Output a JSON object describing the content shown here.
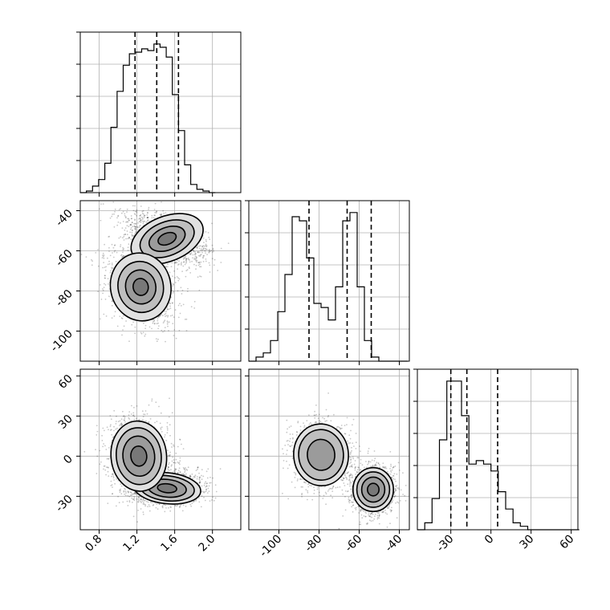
{
  "chart_data": {
    "type": "corner",
    "parameters": [
      {
        "range": [
          0.6,
          2.3
        ],
        "ticks": [
          "0.8",
          "1.2",
          "1.6",
          "2.0"
        ],
        "tick_values": [
          0.8,
          1.2,
          1.6,
          2.0
        ],
        "quantiles": [
          1.18,
          1.41,
          1.64
        ]
      },
      {
        "range": [
          -115,
          -35
        ],
        "ticks": [
          "-100",
          "-80",
          "-60",
          "-40"
        ],
        "tick_values": [
          -100,
          -80,
          -60,
          -40
        ],
        "quantiles": [
          -85,
          -66,
          -54
        ]
      },
      {
        "range": [
          -55,
          65
        ],
        "ticks": [
          "-30",
          "0",
          "30",
          "60"
        ],
        "tick_values": [
          -30,
          0,
          30,
          60
        ],
        "quantiles": [
          -30,
          -18,
          5
        ]
      }
    ],
    "marginals": [
      {
        "param": 0,
        "bin_edges_start": 0.6,
        "bin_width": 0.065,
        "counts": [
          0,
          1,
          4,
          8,
          18,
          40,
          62,
          78,
          85,
          86,
          88,
          87,
          91,
          89,
          83,
          60,
          38,
          17,
          5,
          2,
          1,
          0
        ]
      },
      {
        "param": 1,
        "bin_edges_start": -115,
        "bin_width": 3.6,
        "counts": [
          0,
          1,
          2,
          5,
          12,
          21,
          35,
          34,
          25,
          14,
          13,
          10,
          18,
          34,
          36,
          18,
          5,
          1,
          0,
          0,
          0,
          0
        ]
      },
      {
        "param": 2,
        "bin_edges_start": -55,
        "bin_width": 5.5,
        "counts": [
          0,
          2,
          9,
          26,
          43,
          43,
          33,
          19,
          20,
          19,
          17,
          11,
          6,
          2,
          1,
          0,
          0,
          0,
          0,
          0,
          0,
          0
        ]
      }
    ],
    "joint": [
      {
        "x_param": 0,
        "y_param": 1,
        "modes": [
          {
            "cx": 1.52,
            "cy": -54,
            "sx": 0.2,
            "sy": 5.6,
            "rho": -0.55,
            "contours": [
              0.5,
              1.0,
              1.5,
              2.0
            ]
          },
          {
            "cx": 1.24,
            "cy": -78,
            "sx": 0.16,
            "sy": 8.5,
            "rho": -0.3,
            "contours": [
              0.5,
              1.0,
              1.5,
              2.0
            ]
          }
        ]
      },
      {
        "x_param": 0,
        "y_param": 2,
        "modes": [
          {
            "cx": 1.52,
            "cy": -24,
            "sx": 0.17,
            "sy": 5.5,
            "rho": 0.15,
            "contours": [
              0.6,
              1.2,
              1.7,
              2.1
            ]
          },
          {
            "cx": 1.22,
            "cy": 0,
            "sx": 0.14,
            "sy": 12.5,
            "rho": -0.15,
            "contours": [
              0.6,
              1.2,
              1.7,
              2.1
            ]
          }
        ]
      },
      {
        "x_param": 1,
        "y_param": 2,
        "modes": [
          {
            "cx": -53,
            "cy": -25,
            "sx": 4.8,
            "sy": 7.8,
            "rho": 0.0,
            "contours": [
              0.6,
              1.2,
              1.7,
              2.1
            ]
          },
          {
            "cx": -79,
            "cy": 1,
            "sx": 6.2,
            "sy": 10.5,
            "rho": -0.1,
            "contours": [
              1.1,
              1.8,
              2.2
            ]
          }
        ]
      }
    ]
  }
}
